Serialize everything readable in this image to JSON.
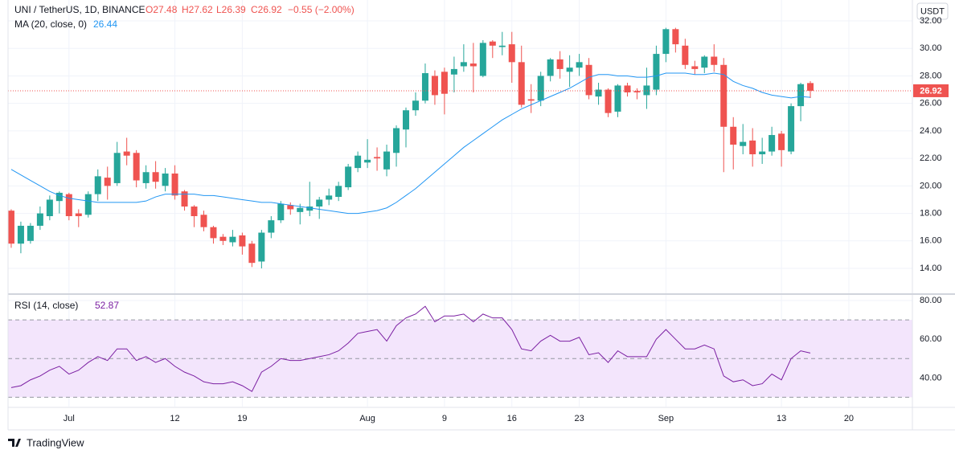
{
  "header": {
    "symbol": "UNI / TetherUS, 1D, BINANCE",
    "open": "O27.48",
    "high": "H27.62",
    "low": "L26.39",
    "close": "C26.92",
    "change": "−0.55 (−2.00%)"
  },
  "currency": "USDT",
  "brand": "TradingView",
  "chart_data": [
    {
      "type": "candlestick",
      "up_color": "#26a69a",
      "down_color": "#ef5350",
      "grid": true,
      "xlim": [
        -0.33,
        93.6
      ],
      "xticks": [
        {
          "value": 6,
          "label": "Jul"
        },
        {
          "value": 17,
          "label": "12"
        },
        {
          "value": 24,
          "label": "19"
        },
        {
          "value": 37,
          "label": "Aug"
        },
        {
          "value": 45,
          "label": "9"
        },
        {
          "value": 52,
          "label": "16"
        },
        {
          "value": 59,
          "label": "23"
        },
        {
          "value": 68,
          "label": "Sep"
        },
        {
          "value": 80,
          "label": "13"
        },
        {
          "value": 87,
          "label": "20"
        }
      ],
      "ylim": [
        12.19,
        33.52
      ],
      "yticks": [
        {
          "value": 14,
          "label": "14.00"
        },
        {
          "value": 16,
          "label": "16.00"
        },
        {
          "value": 18,
          "label": "18.00"
        },
        {
          "value": 20,
          "label": "20.00"
        },
        {
          "value": 22,
          "label": "22.00"
        },
        {
          "value": 24,
          "label": "24.00"
        },
        {
          "value": 26,
          "label": "26.00"
        },
        {
          "value": 28,
          "label": "28.00"
        },
        {
          "value": 30,
          "label": "30.00"
        },
        {
          "value": 32,
          "label": "32.00"
        }
      ],
      "open": [
        18.2,
        15.8,
        16.0,
        17.1,
        17.8,
        18.9,
        19.4,
        18.0,
        17.9,
        19.4,
        20.6,
        20.2,
        22.5,
        22.4,
        20.2,
        21.0,
        20.0,
        20.9,
        19.6,
        18.5,
        17.9,
        17.0,
        16.3,
        15.9,
        16.4,
        15.8,
        14.5,
        16.6,
        17.5,
        18.6,
        18.1,
        18.2,
        18.5,
        19.0,
        19.2,
        19.9,
        21.3,
        21.7,
        22.1,
        21.2,
        22.4,
        24.1,
        25.5,
        26.2,
        28.0,
        28.3,
        28.1,
        28.7,
        28.9,
        28.0,
        30.5,
        30.1,
        30.3,
        29.0,
        26.3,
        26.2,
        28.0,
        29.2,
        28.3,
        28.6,
        28.8,
        26.5,
        27.0,
        25.4,
        27.3,
        26.9,
        26.6,
        27.0,
        29.6,
        31.4,
        30.2,
        28.7,
        28.6,
        29.4,
        28.8,
        24.3,
        22.9,
        23.3,
        22.3,
        22.5,
        23.8,
        22.5,
        25.8,
        27.48
      ],
      "high": [
        18.3,
        17.4,
        17.3,
        18.5,
        19.3,
        19.6,
        19.5,
        18.3,
        19.6,
        21.2,
        21.4,
        23.2,
        23.5,
        22.6,
        21.5,
        21.8,
        21.3,
        21.5,
        19.7,
        18.6,
        18.2,
        17.1,
        16.5,
        16.8,
        16.6,
        16.0,
        16.8,
        17.8,
        18.9,
        18.8,
        18.7,
        20.3,
        19.2,
        19.8,
        20.3,
        21.6,
        22.5,
        23.4,
        22.8,
        23.0,
        24.4,
        25.7,
        26.8,
        28.9,
        28.4,
        28.6,
        29.4,
        30.3,
        30.4,
        30.6,
        30.6,
        31.2,
        31.2,
        30.2,
        27.4,
        28.3,
        29.3,
        29.8,
        29.5,
        29.6,
        29.3,
        27.5,
        27.1,
        27.4,
        27.5,
        27.1,
        28.6,
        30.2,
        31.5,
        31.5,
        30.7,
        29.1,
        29.5,
        30.3,
        29.3,
        25.0,
        24.5,
        24.2,
        23.5,
        24.3,
        24.0,
        26.0,
        27.5,
        27.62
      ],
      "low": [
        15.5,
        15.1,
        15.8,
        16.8,
        17.5,
        18.0,
        17.5,
        17.0,
        17.7,
        18.9,
        19.0,
        20.0,
        21.5,
        19.9,
        19.8,
        19.8,
        19.6,
        19.0,
        18.2,
        17.0,
        16.7,
        15.8,
        15.7,
        15.6,
        15.0,
        14.1,
        14.0,
        16.2,
        17.3,
        17.9,
        17.2,
        17.8,
        17.6,
        18.6,
        18.9,
        19.7,
        21.0,
        21.3,
        21.1,
        20.7,
        21.4,
        22.8,
        25.1,
        26.0,
        25.9,
        25.2,
        26.8,
        28.3,
        26.8,
        27.9,
        29.3,
        29.5,
        27.5,
        25.7,
        25.3,
        25.8,
        27.6,
        27.8,
        27.2,
        28.0,
        26.3,
        25.9,
        25.0,
        25.0,
        26.5,
        26.3,
        25.6,
        26.6,
        29.0,
        29.7,
        28.5,
        28.1,
        28.2,
        28.3,
        21.0,
        21.2,
        22.3,
        21.4,
        21.6,
        22.2,
        21.4,
        22.3,
        24.7,
        26.39
      ],
      "close": [
        15.8,
        17.1,
        17.1,
        18.0,
        19.0,
        19.5,
        17.8,
        17.8,
        19.4,
        20.7,
        20.0,
        22.4,
        22.2,
        20.4,
        21.0,
        20.3,
        20.9,
        19.3,
        18.5,
        17.8,
        17.0,
        16.2,
        16.0,
        16.3,
        15.6,
        14.4,
        16.6,
        17.5,
        18.7,
        18.3,
        18.4,
        18.5,
        19.0,
        19.3,
        20.0,
        21.4,
        22.2,
        21.9,
        22.0,
        22.5,
        24.2,
        25.5,
        26.2,
        28.2,
        26.6,
        26.7,
        28.5,
        29.0,
        28.7,
        30.4,
        30.2,
        30.2,
        29.0,
        25.9,
        26.2,
        28.0,
        29.2,
        28.5,
        28.6,
        29.0,
        26.6,
        27.0,
        25.3,
        27.3,
        26.8,
        26.8,
        27.3,
        29.6,
        31.4,
        30.3,
        28.8,
        28.5,
        29.4,
        28.8,
        24.3,
        23.0,
        23.2,
        22.3,
        22.5,
        23.7,
        22.6,
        25.8,
        27.4,
        26.92
      ],
      "series": [
        {
          "name": "MA (20, close, 0)",
          "color": "#2196f3",
          "values": [
            21.2,
            20.8,
            20.4,
            20.0,
            19.6,
            19.3,
            19.1,
            19.0,
            18.9,
            18.8,
            18.8,
            18.8,
            18.8,
            18.8,
            18.9,
            19.2,
            19.4,
            19.4,
            19.4,
            19.4,
            19.3,
            19.3,
            19.2,
            19.1,
            19.0,
            18.9,
            18.8,
            18.8,
            18.7,
            18.6,
            18.5,
            18.4,
            18.3,
            18.2,
            18.1,
            18.0,
            18.0,
            18.1,
            18.2,
            18.4,
            18.8,
            19.3,
            19.8,
            20.4,
            21.0,
            21.6,
            22.2,
            22.8,
            23.3,
            23.8,
            24.3,
            24.8,
            25.2,
            25.6,
            25.9,
            26.2,
            26.5,
            26.8,
            27.1,
            27.5,
            27.9,
            28.1,
            28.1,
            28.0,
            28.0,
            27.9,
            27.9,
            28.0,
            28.2,
            28.2,
            28.2,
            28.1,
            28.1,
            28.2,
            28.1,
            27.6,
            27.3,
            27.1,
            26.8,
            26.6,
            26.5,
            26.4,
            26.5,
            26.44
          ]
        }
      ]
    },
    {
      "type": "line",
      "name": "RSI (14, close)",
      "color": "#7b1fa2",
      "band_color": "#f3e5fc",
      "ylim": [
        25.2,
        82.9
      ],
      "yticks": [
        {
          "value": 40,
          "label": "40.00"
        },
        {
          "value": 60,
          "label": "60.00"
        },
        {
          "value": 80,
          "label": "80.00"
        }
      ],
      "levels": [
        30,
        50,
        70
      ],
      "values": [
        35,
        36,
        39,
        41,
        44,
        46,
        42,
        44,
        48,
        51,
        49,
        55,
        55,
        49,
        51,
        48,
        50,
        46,
        43,
        41,
        38,
        37,
        37,
        38,
        36,
        33,
        43,
        46,
        50,
        49,
        49,
        50,
        51,
        52,
        54,
        58,
        63,
        64,
        65,
        59,
        67,
        71,
        73,
        77,
        69,
        72,
        72,
        73,
        69,
        73,
        71,
        71,
        65,
        55,
        54,
        59,
        62,
        59,
        59,
        61,
        52,
        53,
        48,
        54,
        51,
        51,
        51,
        60,
        65,
        60,
        55,
        55,
        57,
        55,
        41,
        38,
        39,
        36,
        37,
        42,
        39,
        50,
        54,
        52.87
      ]
    }
  ]
}
